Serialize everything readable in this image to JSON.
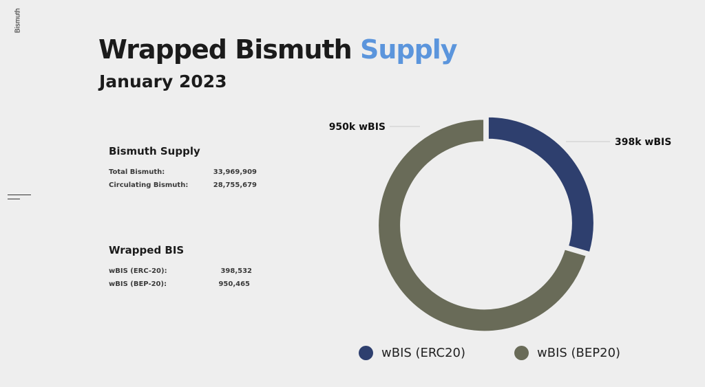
{
  "sidebar": {
    "label": "Bismuth"
  },
  "header": {
    "title_main": "Wrapped Bismuth",
    "title_accent": "Supply",
    "subtitle": "January 2023"
  },
  "bismuth_supply": {
    "heading": "Bismuth Supply",
    "rows": [
      {
        "label": "Total Bismuth:",
        "value": "33,969,909"
      },
      {
        "label": "Circulating Bismuth:",
        "value": "28,755,679"
      }
    ]
  },
  "wrapped_bis": {
    "heading": "Wrapped BIS",
    "rows": [
      {
        "label": "wBIS (ERC-20):",
        "value": "398,532"
      },
      {
        "label": "wBIS (BEP-20):",
        "value": "950,465"
      }
    ]
  },
  "colors": {
    "accent": "#5b95dc",
    "erc20": "#2e3f6e",
    "bep20": "#696b58"
  },
  "chart_data": {
    "type": "pie",
    "donut": true,
    "categories": [
      "wBIS (ERC20)",
      "wBIS (BEP20)"
    ],
    "values": [
      398532,
      950465
    ],
    "data_labels": [
      "398k wBIS",
      "950k wBIS"
    ],
    "legend": "bottom"
  }
}
